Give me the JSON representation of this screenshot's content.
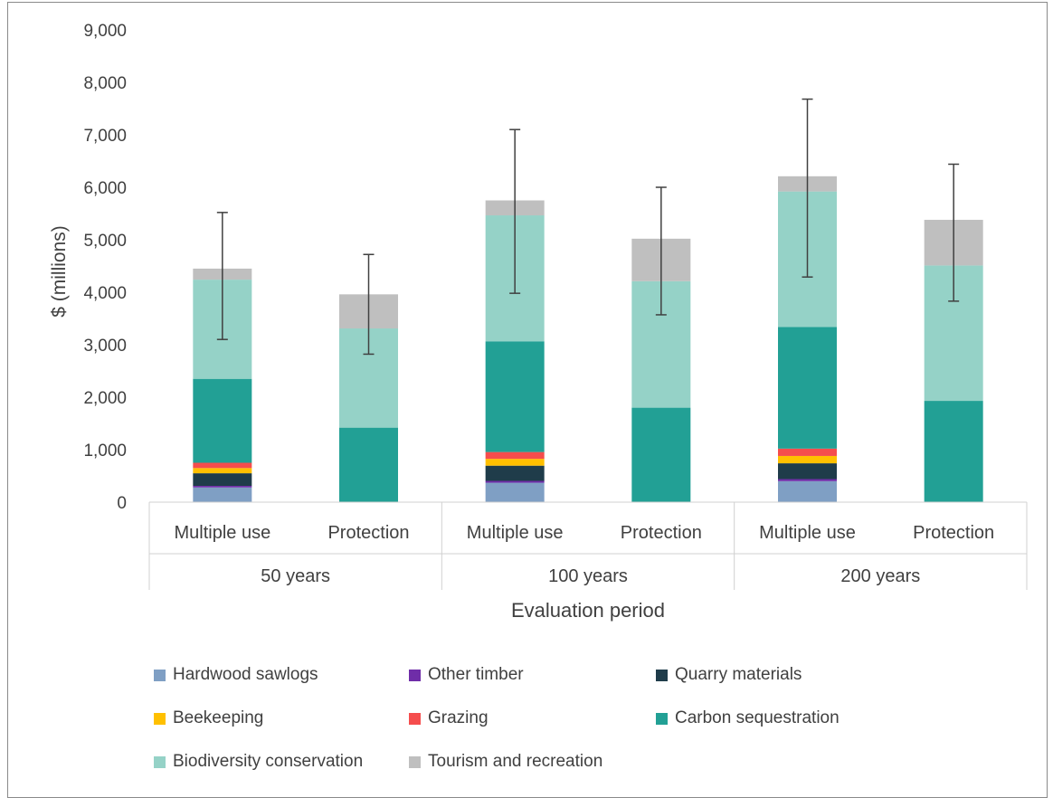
{
  "chart_data": {
    "type": "bar",
    "stacked": true,
    "ylabel": "$ (millions)",
    "xlabel": "Evaluation period",
    "ylim": [
      0,
      9000
    ],
    "yticks": [
      "0",
      "1,000",
      "2,000",
      "3,000",
      "4,000",
      "5,000",
      "6,000",
      "7,000",
      "8,000",
      "9,000"
    ],
    "groups": [
      {
        "label": "50 years",
        "categories": [
          "Multiple use",
          "Protection"
        ]
      },
      {
        "label": "100 years",
        "categories": [
          "Multiple use",
          "Protection"
        ]
      },
      {
        "label": "200 years",
        "categories": [
          "Multiple use",
          "Protection"
        ]
      }
    ],
    "categories": [
      "Multiple use",
      "Protection",
      "Multiple use",
      "Protection",
      "Multiple use",
      "Protection"
    ],
    "series": [
      {
        "name": "Hardwood sawlogs",
        "color": "#7f9fc4",
        "values": [
          280,
          0,
          370,
          0,
          400,
          0
        ]
      },
      {
        "name": "Other timber",
        "color": "#6f2da8",
        "values": [
          30,
          0,
          35,
          0,
          40,
          0
        ]
      },
      {
        "name": "Quarry materials",
        "color": "#1f3c4a",
        "values": [
          240,
          0,
          290,
          0,
          300,
          0
        ]
      },
      {
        "name": "Beekeeping",
        "color": "#ffc000",
        "values": [
          100,
          0,
          130,
          0,
          140,
          0
        ]
      },
      {
        "name": "Grazing",
        "color": "#f54d4d",
        "values": [
          100,
          0,
          130,
          0,
          140,
          0
        ]
      },
      {
        "name": "Carbon sequestration",
        "color": "#22a095",
        "values": [
          1600,
          1420,
          2110,
          1800,
          2320,
          1930
        ]
      },
      {
        "name": "Biodiversity conservation",
        "color": "#95d2c7",
        "values": [
          1890,
          1890,
          2400,
          2410,
          2580,
          2580
        ]
      },
      {
        "name": "Tourism and recreation",
        "color": "#bfbfbf",
        "values": [
          210,
          650,
          285,
          810,
          290,
          870
        ]
      }
    ],
    "error_bars": [
      {
        "low": 3100,
        "high": 5520
      },
      {
        "low": 2820,
        "high": 4720
      },
      {
        "low": 3980,
        "high": 7100
      },
      {
        "low": 3570,
        "high": 6000
      },
      {
        "low": 4290,
        "high": 7680
      },
      {
        "low": 3830,
        "high": 6440
      }
    ],
    "legend_position": "bottom",
    "grid": false
  }
}
